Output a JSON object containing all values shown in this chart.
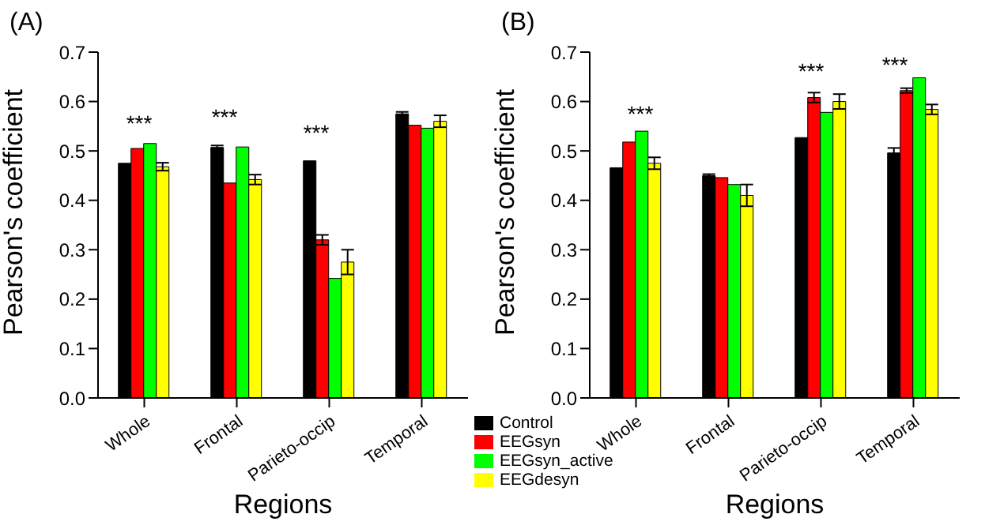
{
  "chart_data": [
    {
      "type": "bar",
      "title": "(A)",
      "xlabel": "Regions",
      "ylabel": "Pearson's coefficient",
      "categories": [
        "Whole",
        "Frontal",
        "Parieto-occip",
        "Temporal"
      ],
      "ylim": [
        0,
        0.7
      ],
      "yticks": [
        {
          "value": 0,
          "label": "0.0"
        },
        0.1,
        0.2,
        0.3,
        0.4,
        0.5,
        0.6,
        0.7
      ],
      "grid": false,
      "legend": false,
      "series": [
        {
          "color": "#000000",
          "values": [
            0.475,
            0.507,
            0.48,
            0.575
          ],
          "errors": [
            null,
            0.004,
            null,
            0.004
          ]
        },
        {
          "color": "#ff0000",
          "values": [
            0.505,
            0.435,
            0.32,
            0.552
          ],
          "errors": [
            null,
            null,
            0.01,
            null
          ]
        },
        {
          "color": "#00ff00",
          "values": [
            0.515,
            0.508,
            0.242,
            0.546
          ],
          "errors": [
            null,
            null,
            null,
            null
          ]
        },
        {
          "color": "#ffff00",
          "values": [
            0.468,
            0.442,
            0.275,
            0.56
          ],
          "errors": [
            0.008,
            0.01,
            0.025,
            0.012
          ]
        }
      ],
      "annotations": [
        "***",
        "***",
        "***"
      ]
    },
    {
      "type": "bar",
      "title": "(B)",
      "xlabel": "Regions",
      "ylabel": "Pearson's coefficient",
      "categories": [
        "Whole",
        "Frontal",
        "Parieto-occip",
        "Temporal"
      ],
      "ylim": [
        0,
        0.7
      ],
      "yticks": [
        {
          "value": 0,
          "label": "0.0"
        },
        0.1,
        0.2,
        0.3,
        0.4,
        0.5,
        0.6,
        0.7
      ],
      "grid": false,
      "legend": "bottom left",
      "series": [
        {
          "name": "Control",
          "color": "#000000",
          "values": [
            0.466,
            0.45,
            0.527,
            0.496
          ],
          "errors": [
            null,
            0.003,
            null,
            0.01
          ]
        },
        {
          "name": "EEGsyn",
          "color": "#ff0000",
          "values": [
            0.518,
            0.446,
            0.608,
            0.622
          ],
          "errors": [
            null,
            null,
            0.01,
            0.005
          ]
        },
        {
          "name": "EEGsyn_active",
          "color": "#00ff00",
          "values": [
            0.54,
            0.432,
            0.578,
            0.648
          ],
          "errors": [
            null,
            null,
            null,
            null
          ]
        },
        {
          "name": "EEGdesyn",
          "color": "#ffff00",
          "values": [
            0.475,
            0.41,
            0.6,
            0.584
          ],
          "errors": [
            0.012,
            0.022,
            0.015,
            0.01
          ]
        }
      ],
      "annotations": [
        "***",
        "***",
        "***"
      ]
    }
  ]
}
